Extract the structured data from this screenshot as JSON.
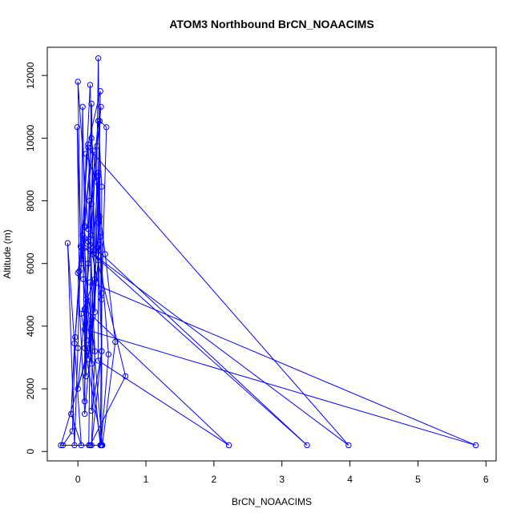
{
  "chart_data": {
    "type": "line",
    "title": "ATOM3 Northbound BrCN_NOAACIMS",
    "xlabel": "BrCN_NOAACIMS",
    "ylabel": "Altitude (m)",
    "xlim": [
      -0.45,
      6.15
    ],
    "ylim": [
      -300,
      12900
    ],
    "x_ticks": [
      0,
      1,
      2,
      3,
      4,
      5,
      6
    ],
    "x_tick_labels": [
      "0",
      "1",
      "2",
      "3",
      "4",
      "5",
      "6"
    ],
    "y_ticks": [
      0,
      2000,
      4000,
      6000,
      8000,
      10000,
      12000
    ],
    "y_tick_labels": [
      "0",
      "2000",
      "4000",
      "6000",
      "8000",
      "10000",
      "12000"
    ],
    "grid": false,
    "legend": "none",
    "series_color": "#0000ff",
    "marker": "open-circle",
    "series": [
      {
        "points": [
          [
            -0.22,
            200
          ],
          [
            -0.08,
            650
          ],
          [
            -0.04,
            3650
          ],
          [
            0.02,
            5750
          ],
          [
            -0.01,
            10350
          ],
          [
            0.05,
            6000
          ],
          [
            0.07,
            11000
          ],
          [
            0.1,
            7200
          ],
          [
            0.12,
            2400
          ],
          [
            0.15,
            6700
          ],
          [
            0.2,
            11100
          ],
          [
            0.25,
            4450
          ],
          [
            0.3,
            12550
          ],
          [
            0.35,
            3200
          ],
          [
            0.2,
            200
          ],
          [
            0.25,
            3200
          ],
          [
            0.18,
            6400
          ],
          [
            0.28,
            9750
          ],
          [
            0.34,
            11000
          ],
          [
            0.2,
            7900
          ],
          [
            0.16,
            200
          ],
          [
            0.34,
            200
          ],
          [
            0.45,
            3100
          ],
          [
            0.3,
            7300
          ],
          [
            0.33,
            11500
          ],
          [
            0.15,
            9800
          ],
          [
            0.05,
            6500
          ],
          [
            0.2,
            4200
          ],
          [
            0.36,
            200
          ],
          [
            0.55,
            3500
          ],
          [
            0.4,
            6300
          ],
          [
            0.2,
            10000
          ],
          [
            0.1,
            7150
          ],
          [
            -0.05,
            3450
          ],
          [
            -0.1,
            1200
          ],
          [
            0.05,
            200
          ],
          [
            -0.15,
            6650
          ],
          [
            -0.05,
            200
          ],
          [
            0.0,
            3300
          ],
          [
            0.04,
            6550
          ],
          [
            0.0,
            11800
          ],
          [
            0.15,
            7100
          ],
          [
            0.3,
            10550
          ],
          [
            0.35,
            8450
          ],
          [
            0.35,
            200
          ],
          [
            0.1,
            3300
          ],
          [
            0.07,
            6900
          ],
          [
            0.18,
            11700
          ],
          [
            0.25,
            6450
          ],
          [
            0.7,
            2400
          ],
          [
            0.18,
            200
          ],
          [
            -0.25,
            200
          ],
          [
            0.2,
            3500
          ],
          [
            0.27,
            6300
          ],
          [
            0.32,
            10550
          ],
          [
            0.42,
            10350
          ],
          [
            0.35,
            5050
          ],
          [
            0.33,
            200
          ],
          [
            0.08,
            5500
          ],
          [
            0.12,
            9500
          ],
          [
            0.28,
            8600
          ],
          [
            0.33,
            6850
          ],
          [
            0.35,
            4850
          ],
          [
            0.18,
            6600
          ],
          [
            0.22,
            9600
          ],
          [
            0.0,
            5700
          ],
          [
            0.1,
            1200
          ],
          [
            0.32,
            6600
          ],
          [
            0.3,
            6400
          ],
          [
            0.35,
            3200
          ],
          [
            0.2,
            1300
          ],
          [
            0.22,
            4300
          ],
          [
            0.17,
            8000
          ],
          [
            0.15,
            6000
          ],
          [
            0.13,
            3550
          ],
          [
            0.12,
            4850
          ],
          [
            0.1,
            1600
          ],
          [
            0.1,
            4550
          ],
          [
            2.22,
            200
          ],
          [
            0.3,
            2900
          ],
          [
            0.3,
            8900
          ],
          [
            0.32,
            7500
          ],
          [
            0.15,
            3300
          ],
          [
            0.0,
            2000
          ],
          [
            0.2,
            6900
          ],
          [
            0.1,
            6800
          ],
          [
            3.37,
            200
          ],
          [
            0.22,
            6300
          ],
          [
            0.3,
            8800
          ],
          [
            0.3,
            6100
          ],
          [
            0.15,
            2950
          ],
          [
            0.05,
            4400
          ],
          [
            0.25,
            5500
          ],
          [
            0.15,
            9700
          ],
          [
            3.98,
            200
          ],
          [
            0.1,
            6500
          ],
          [
            0.2,
            2800
          ],
          [
            0.18,
            5400
          ],
          [
            5.85,
            200
          ],
          [
            0.1,
            3900
          ],
          [
            0.15,
            4800
          ]
        ]
      }
    ]
  }
}
